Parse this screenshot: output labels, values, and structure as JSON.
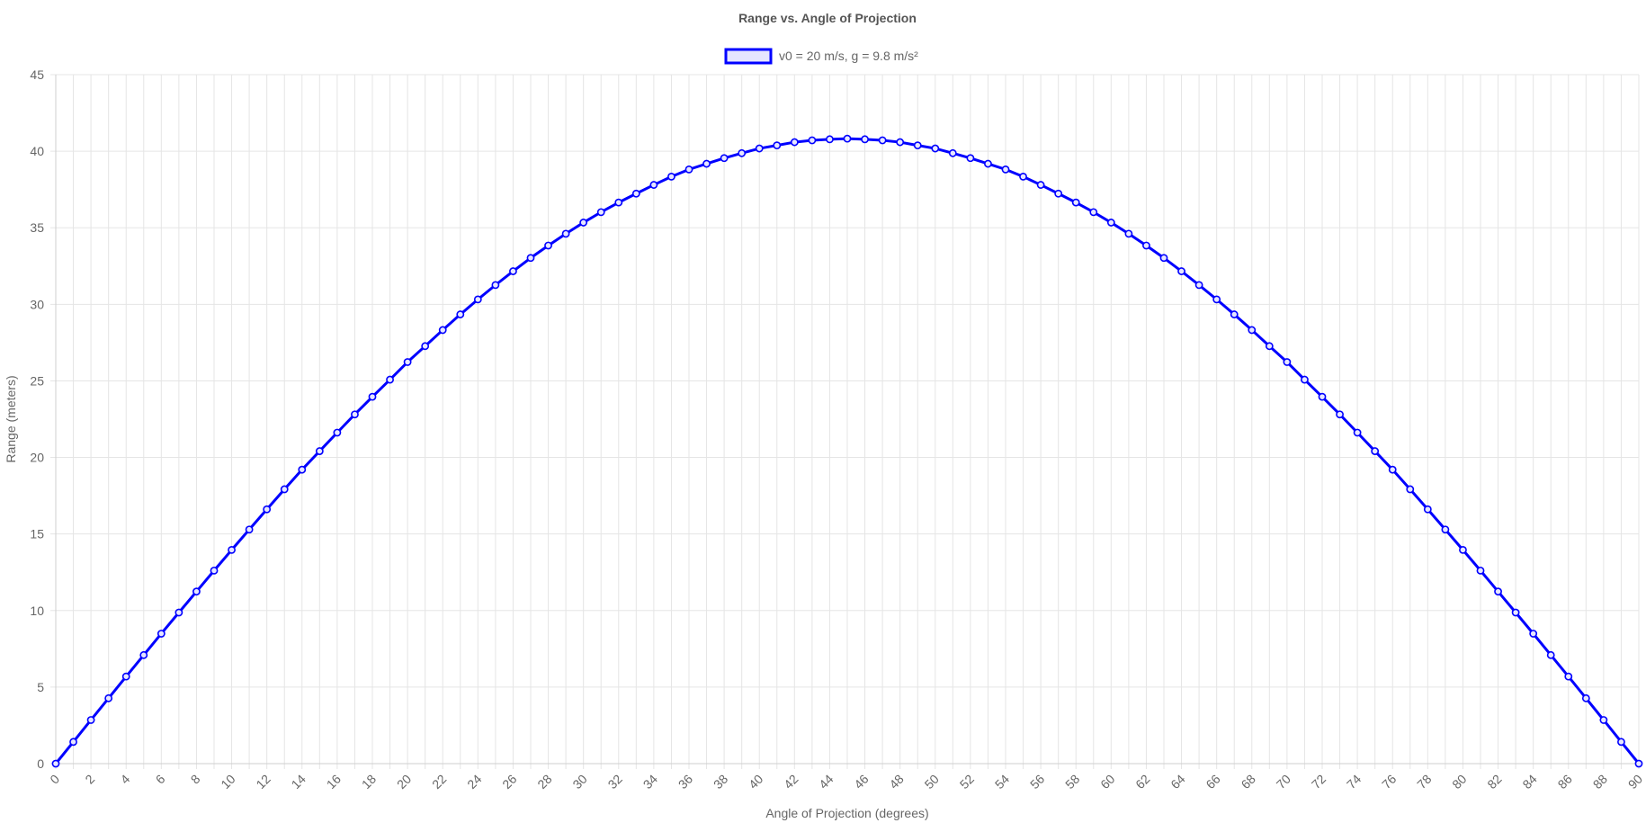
{
  "chart_data": {
    "type": "line",
    "title": "Range vs. Angle of Projection",
    "xlabel": "Angle of Projection (degrees)",
    "ylabel": "Range (meters)",
    "xlim": [
      0,
      90
    ],
    "ylim": [
      0,
      45
    ],
    "y_ticks": [
      0,
      5,
      10,
      15,
      20,
      25,
      30,
      35,
      40,
      45
    ],
    "x_tick_labels": [
      "0",
      "2",
      "4",
      "6",
      "8",
      "10",
      "12",
      "14",
      "16",
      "18",
      "20",
      "22",
      "24",
      "26",
      "28",
      "30",
      "32",
      "34",
      "36",
      "38",
      "40",
      "42",
      "44",
      "46",
      "48",
      "50",
      "52",
      "54",
      "56",
      "58",
      "60",
      "62",
      "64",
      "66",
      "68",
      "70",
      "72",
      "74",
      "76",
      "78",
      "80",
      "82",
      "84",
      "86",
      "88",
      "90"
    ],
    "grid": true,
    "legend_position": "top",
    "x": [
      0,
      1,
      2,
      3,
      4,
      5,
      6,
      7,
      8,
      9,
      10,
      11,
      12,
      13,
      14,
      15,
      16,
      17,
      18,
      19,
      20,
      21,
      22,
      23,
      24,
      25,
      26,
      27,
      28,
      29,
      30,
      31,
      32,
      33,
      34,
      35,
      36,
      37,
      38,
      39,
      40,
      41,
      42,
      43,
      44,
      45,
      46,
      47,
      48,
      49,
      50,
      51,
      52,
      53,
      54,
      55,
      56,
      57,
      58,
      59,
      60,
      61,
      62,
      63,
      64,
      65,
      66,
      67,
      68,
      69,
      70,
      71,
      72,
      73,
      74,
      75,
      76,
      77,
      78,
      79,
      80,
      81,
      82,
      83,
      84,
      85,
      86,
      87,
      88,
      89,
      90
    ],
    "series": [
      {
        "name": "v0 = 20 m/s, g = 9.8 m/s²",
        "color": "#0000ff",
        "fill": "#e6e6ff",
        "values": [
          0,
          1.42,
          2.85,
          4.27,
          5.69,
          7.09,
          8.49,
          9.87,
          11.24,
          12.61,
          13.96,
          15.29,
          16.61,
          17.92,
          19.2,
          20.41,
          21.62,
          22.81,
          23.96,
          25.08,
          26.23,
          27.27,
          28.32,
          29.34,
          30.32,
          31.26,
          32.16,
          33.03,
          33.84,
          34.61,
          35.34,
          36.02,
          36.65,
          37.23,
          37.8,
          38.34,
          38.81,
          39.18,
          39.55,
          39.87,
          40.18,
          40.38,
          40.59,
          40.71,
          40.78,
          40.82,
          40.78,
          40.71,
          40.59,
          40.38,
          40.18,
          39.87,
          39.55,
          39.18,
          38.81,
          38.34,
          37.8,
          37.23,
          36.65,
          36.02,
          35.34,
          34.61,
          33.84,
          33.03,
          32.16,
          31.26,
          30.32,
          29.34,
          28.32,
          27.27,
          26.23,
          25.08,
          23.96,
          22.81,
          21.62,
          20.41,
          19.2,
          17.92,
          16.61,
          15.29,
          13.96,
          12.61,
          11.24,
          9.87,
          8.49,
          7.09,
          5.69,
          4.27,
          2.85,
          1.42,
          0
        ]
      }
    ]
  }
}
